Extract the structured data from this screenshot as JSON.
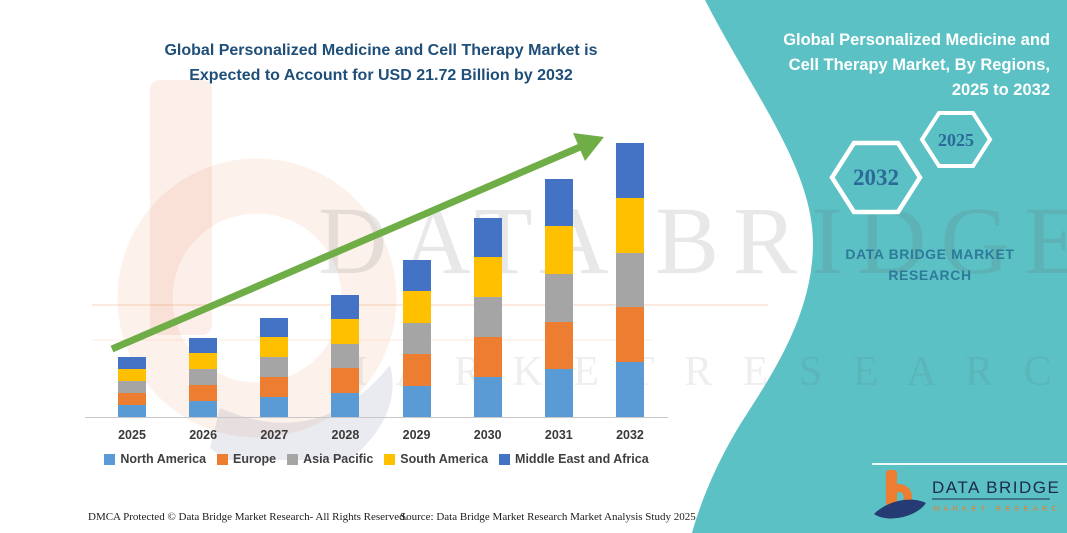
{
  "title": {
    "line1": "Global Personalized Medicine and Cell Therapy Market is",
    "line2": "Expected to Account for USD 21.72 Billion by 2032"
  },
  "chart_data": {
    "type": "bar",
    "stacked": true,
    "unit": "USD Billion",
    "categories": [
      "2025",
      "2026",
      "2027",
      "2028",
      "2029",
      "2030",
      "2031",
      "2032"
    ],
    "series": [
      {
        "name": "North America",
        "color": "#5B9BD5",
        "values": [
          0.95,
          1.26,
          1.58,
          1.94,
          2.5,
          3.16,
          3.78,
          4.34
        ]
      },
      {
        "name": "Europe",
        "color": "#ED7D31",
        "values": [
          0.95,
          1.26,
          1.58,
          1.94,
          2.5,
          3.16,
          3.78,
          4.35
        ]
      },
      {
        "name": "Asia Pacific",
        "color": "#A5A5A5",
        "values": [
          0.95,
          1.26,
          1.58,
          1.94,
          2.5,
          3.16,
          3.78,
          4.35
        ]
      },
      {
        "name": "South America",
        "color": "#FFC000",
        "values": [
          0.95,
          1.26,
          1.58,
          1.94,
          2.5,
          3.16,
          3.78,
          4.34
        ]
      },
      {
        "name": "Middle East and Africa",
        "color": "#4472C4",
        "values": [
          0.95,
          1.26,
          1.58,
          1.94,
          2.5,
          3.16,
          3.78,
          4.34
        ]
      }
    ],
    "totals_estimated": [
      4.75,
      6.3,
      7.9,
      9.7,
      12.5,
      15.8,
      18.9,
      21.72
    ],
    "highlight_value": "USD 21.72 Billion by 2032",
    "trend_arrow": true,
    "axis": {
      "gridlines": false,
      "y_axis_visible": false
    },
    "legend_position": "bottom"
  },
  "side_panel": {
    "heading_line1": "Global Personalized Medicine and",
    "heading_line2": "Cell Therapy Market, By Regions,",
    "heading_line3": "2025 to 2032",
    "hexagon_large": "2032",
    "hexagon_small": "2025",
    "brand_line1": "DATA BRIDGE MARKET",
    "brand_line2": "RESEARCH",
    "background_color": "#5CC1C4",
    "hexagon_text_color": "#2B6A99"
  },
  "watermark": {
    "row1": "DATA BRIDGE",
    "row2": "M A R K E T    R E S E A R C H"
  },
  "logo": {
    "title": "DATA BRIDGE",
    "subtitle": "MARKET RESEARCH"
  },
  "footer": {
    "left": "DMCA Protected © Data Bridge Market Research-  All Rights Reserved.",
    "right": "Source: Data Bridge Market Research  Market Analysis Study 2025"
  },
  "colors": {
    "title_text": "#1F4E79",
    "arrow_green": "#6FAD47",
    "teal": "#5CC1C4"
  }
}
